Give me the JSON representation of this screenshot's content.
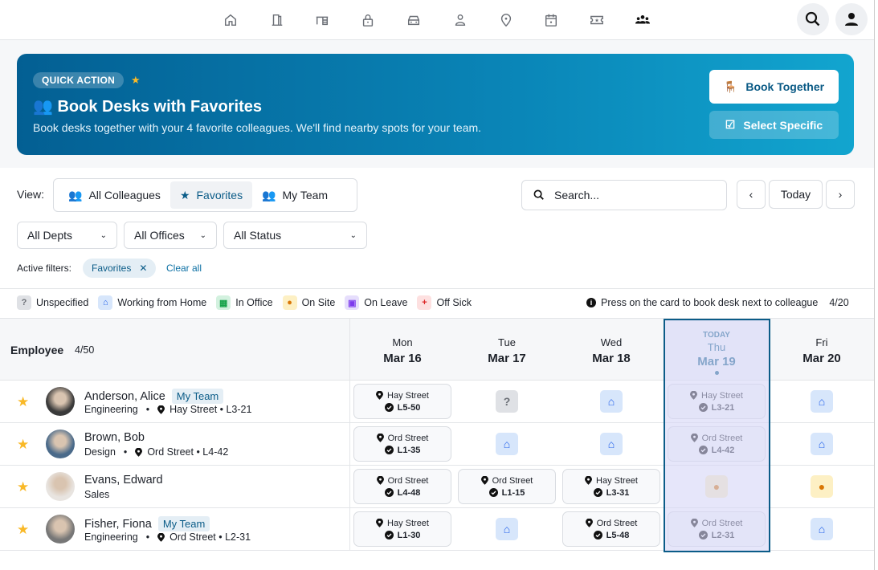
{
  "nav": {
    "icons": [
      "home-icon",
      "door-icon",
      "desk-icon",
      "lock-icon",
      "car-icon",
      "person-icon",
      "location-pin-icon",
      "calendar-icon",
      "ticket-icon",
      "team-icon"
    ],
    "active": "team-icon"
  },
  "banner": {
    "badge": "QUICK ACTION",
    "title": "👥 Book Desks with Favorites",
    "subtitle": "Book desks together with your 4 favorite colleagues. We'll find nearby spots for your team.",
    "book_together": "Book Together",
    "select_specific": "Select Specific",
    "accent": "#0a86b8"
  },
  "view": {
    "label": "View:",
    "options": [
      "All Colleagues",
      "Favorites",
      "My Team"
    ],
    "selected": "Favorites"
  },
  "search": {
    "placeholder": "Search...",
    "value": ""
  },
  "dateNav": {
    "today": "Today"
  },
  "filters": {
    "dept": "All Depts",
    "office": "All Offices",
    "status": "All Status"
  },
  "active_filters": {
    "label": "Active filters:",
    "chips": [
      "Favorites"
    ],
    "clear": "Clear all"
  },
  "legend": [
    {
      "label": "Unspecified",
      "icon": "question-icon",
      "bg": "#dfe1e5",
      "fg": "#6b6f76"
    },
    {
      "label": "Working from Home",
      "icon": "home-icon",
      "bg": "#d7e6fb",
      "fg": "#2563eb"
    },
    {
      "label": "In Office",
      "icon": "building-icon",
      "bg": "#d3f1df",
      "fg": "#16a34a"
    },
    {
      "label": "On Site",
      "icon": "location-pin-icon",
      "bg": "#fdf0c4",
      "fg": "#d97706"
    },
    {
      "label": "On Leave",
      "icon": "calendar-icon",
      "bg": "#e6defc",
      "fg": "#7c3aed"
    },
    {
      "label": "Off Sick",
      "icon": "medical-icon",
      "bg": "#fde0e0",
      "fg": "#dc2626"
    }
  ],
  "hint": {
    "text": "Press on the card to book desk next to colleague",
    "count": "4/20"
  },
  "table": {
    "employee_header": "Employee",
    "count": "4/50",
    "today_label": "TODAY",
    "days": [
      {
        "dn": "Mon",
        "dd": "Mar 16"
      },
      {
        "dn": "Tue",
        "dd": "Mar 17"
      },
      {
        "dn": "Wed",
        "dd": "Mar 18"
      },
      {
        "dn": "Thu",
        "dd": "Mar 19",
        "today": true
      },
      {
        "dn": "Fri",
        "dd": "Mar 20"
      }
    ],
    "rows": [
      {
        "name": "Anderson, Alice",
        "tag": "My Team",
        "dept": "Engineering",
        "loc": "Hay Street • L3-21",
        "favorite": true,
        "cells": [
          {
            "type": "desk",
            "office": "Hay Street",
            "desk": "L5-50"
          },
          {
            "type": "unspecified"
          },
          {
            "type": "home"
          },
          {
            "type": "desk",
            "office": "Hay Street",
            "desk": "L3-21"
          },
          {
            "type": "home"
          }
        ]
      },
      {
        "name": "Brown, Bob",
        "tag": "",
        "dept": "Design",
        "loc": "Ord Street • L4-42",
        "favorite": true,
        "cells": [
          {
            "type": "desk",
            "office": "Ord Street",
            "desk": "L1-35"
          },
          {
            "type": "home"
          },
          {
            "type": "home"
          },
          {
            "type": "desk",
            "office": "Ord Street",
            "desk": "L4-42"
          },
          {
            "type": "home"
          }
        ]
      },
      {
        "name": "Evans, Edward",
        "tag": "",
        "dept": "Sales",
        "loc": "",
        "favorite": true,
        "cells": [
          {
            "type": "desk",
            "office": "Ord Street",
            "desk": "L4-48"
          },
          {
            "type": "desk",
            "office": "Ord Street",
            "desk": "L1-15"
          },
          {
            "type": "desk",
            "office": "Hay Street",
            "desk": "L3-31"
          },
          {
            "type": "onsite"
          },
          {
            "type": "onsite"
          }
        ]
      },
      {
        "name": "Fisher, Fiona",
        "tag": "My Team",
        "dept": "Engineering",
        "loc": "Ord Street • L2-31",
        "favorite": true,
        "cells": [
          {
            "type": "desk",
            "office": "Hay Street",
            "desk": "L1-30"
          },
          {
            "type": "home"
          },
          {
            "type": "desk",
            "office": "Ord Street",
            "desk": "L5-48"
          },
          {
            "type": "desk",
            "office": "Ord Street",
            "desk": "L2-31"
          },
          {
            "type": "home"
          }
        ]
      }
    ]
  }
}
